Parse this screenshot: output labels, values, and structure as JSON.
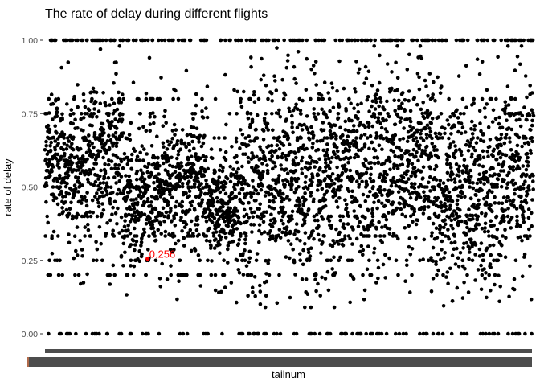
{
  "chart_data": {
    "type": "scatter",
    "title": "The rate of delay during different flights",
    "xlabel": "tailnum",
    "ylabel": "rate of delay",
    "y_ticks": [
      "0.00",
      "0.25",
      "0.50",
      "0.75",
      "1.00"
    ],
    "y_tick_values": [
      0,
      0.25,
      0.5,
      0.75,
      1.0
    ],
    "ylim": [
      -0.03,
      1.045
    ],
    "x_tick_labels_legible": false,
    "approx_num_tailnums": 4000,
    "grid": false,
    "point_color": "#000000",
    "density_profile": [
      {
        "x_range": [
          0,
          0.035
        ],
        "center": 0.6,
        "spread": 0.1
      },
      {
        "x_range": [
          0.035,
          0.08
        ],
        "center": 0.57,
        "spread": 0.12
      },
      {
        "x_range": [
          0.08,
          0.16
        ],
        "center": 0.6,
        "spread": 0.14
      },
      {
        "x_range": [
          0.16,
          0.24
        ],
        "center": 0.46,
        "spread": 0.1
      },
      {
        "x_range": [
          0.24,
          0.33
        ],
        "center": 0.52,
        "spread": 0.12
      },
      {
        "x_range": [
          0.33,
          0.39
        ],
        "center": 0.43,
        "spread": 0.08
      },
      {
        "x_range": [
          0.39,
          0.46
        ],
        "center": 0.5,
        "spread": 0.16
      },
      {
        "x_range": [
          0.46,
          0.59
        ],
        "center": 0.52,
        "spread": 0.16
      },
      {
        "x_range": [
          0.59,
          0.72
        ],
        "center": 0.56,
        "spread": 0.16
      },
      {
        "x_range": [
          0.72,
          0.8
        ],
        "center": 0.6,
        "spread": 0.15
      },
      {
        "x_range": [
          0.8,
          0.88
        ],
        "center": 0.5,
        "spread": 0.15
      },
      {
        "x_range": [
          0.88,
          0.94
        ],
        "center": 0.48,
        "spread": 0.15
      },
      {
        "x_range": [
          0.94,
          1.0
        ],
        "center": 0.55,
        "spread": 0.15
      }
    ],
    "highlight": {
      "value": 0.256,
      "label": "0.256",
      "color": "#ff0000",
      "x_fraction": 0.21
    }
  }
}
